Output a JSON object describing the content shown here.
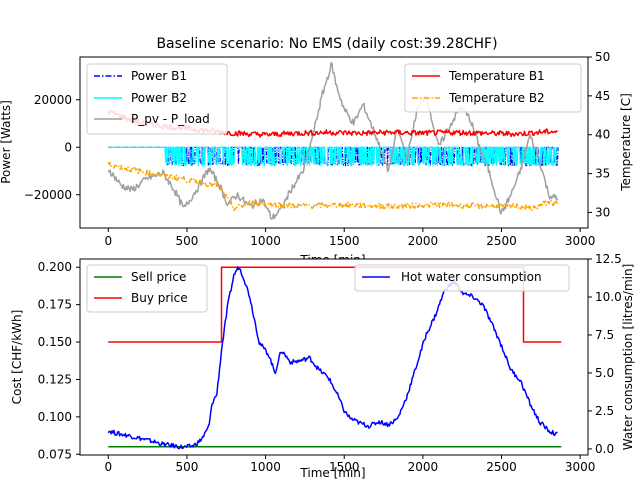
{
  "chart_data": [
    {
      "type": "line",
      "title": "Baseline scenario: No EMS (daily cost:39.28CHF)",
      "xlabel": "Time [min]",
      "ylabel": "Power [Watts]",
      "ylabel_right": "Temperature [C]",
      "xlim": [
        -180,
        3050
      ],
      "ylim": [
        -34000,
        38000
      ],
      "ylim_right": [
        28,
        50
      ],
      "xticks": [
        "0",
        "500",
        "1000",
        "1500",
        "2000",
        "2500",
        "3000"
      ],
      "yticks": [
        "−20000",
        "0",
        "20000"
      ],
      "yticks_right": [
        "30",
        "35",
        "40",
        "45",
        "50"
      ],
      "legend_left": [
        "Power B1",
        "Power B2",
        "P_pv - P_load"
      ],
      "legend_right": [
        "Temperature B1",
        "Temperature B2"
      ],
      "series": [
        {
          "name": "Power B1",
          "axis": "left",
          "color": "#0000ff",
          "style": "dashdot",
          "note_values": [
            0,
            -7000
          ]
        },
        {
          "name": "Power B2",
          "axis": "left",
          "color": "#00ffff",
          "style": "solid",
          "note_values": [
            0,
            -7000
          ]
        },
        {
          "name": "P_pv - P_load",
          "axis": "left",
          "color": "#a0a0a0",
          "style": "solid",
          "x": [
            0,
            80,
            150,
            250,
            350,
            420,
            480,
            560,
            640,
            700,
            760,
            820,
            900,
            980,
            1040,
            1100,
            1160,
            1240,
            1300,
            1360,
            1420,
            1450,
            1500,
            1560,
            1620,
            1700,
            1780,
            1840,
            1900,
            1960,
            2020,
            2100,
            2180,
            2240,
            2300,
            2360,
            2420,
            2500,
            2560,
            2620,
            2680,
            2740,
            2800,
            2860
          ],
          "y": [
            -9000,
            -16000,
            -18000,
            -13000,
            -11000,
            -18000,
            -26000,
            -18000,
            -9000,
            -15000,
            -24000,
            -20000,
            -25000,
            -22000,
            -30000,
            -26000,
            -18000,
            -10000,
            5000,
            22000,
            35000,
            26000,
            16000,
            10000,
            18000,
            5000,
            -10000,
            8000,
            -5000,
            15000,
            22000,
            0,
            10000,
            17000,
            12000,
            0,
            -10000,
            -28000,
            -20000,
            -10000,
            5000,
            -5000,
            -20000,
            -22000
          ]
        },
        {
          "name": "Temperature B1",
          "axis": "right",
          "color": "#ff0000",
          "style": "solid",
          "x": [
            0,
            200,
            400,
            600,
            800,
            1000,
            1200,
            1400,
            1600,
            1800,
            2000,
            2200,
            2400,
            2600,
            2800,
            2860
          ],
          "y": [
            43.0,
            41.5,
            41.0,
            40.6,
            40.2,
            40.0,
            40.2,
            40.3,
            40.2,
            40.3,
            40.2,
            40.3,
            40.2,
            40.1,
            40.4,
            40.4
          ]
        },
        {
          "name": "Temperature B2",
          "axis": "right",
          "color": "#ffa500",
          "style": "dashdot",
          "x": [
            0,
            200,
            400,
            600,
            700,
            800,
            900,
            1200,
            1500,
            1800,
            2100,
            2400,
            2600,
            2700,
            2800,
            2860
          ],
          "y": [
            36.2,
            35.3,
            34.6,
            33.8,
            33.5,
            30.5,
            31.2,
            30.8,
            31.0,
            30.8,
            31.0,
            30.8,
            30.8,
            30.5,
            31.4,
            31.0
          ]
        }
      ]
    },
    {
      "type": "line",
      "xlabel": "Time [min]",
      "ylabel": "Cost [CHF/kWh]",
      "ylabel_right": "Water consumption [litres/min]",
      "xlim": [
        -180,
        3050
      ],
      "ylim": [
        0.0745,
        0.2055
      ],
      "ylim_right": [
        -0.4,
        12.5
      ],
      "xticks": [
        "0",
        "500",
        "1000",
        "1500",
        "2000",
        "2500",
        "3000"
      ],
      "yticks": [
        "0.075",
        "0.100",
        "0.125",
        "0.150",
        "0.175",
        "0.200"
      ],
      "yticks_right": [
        "0.0",
        "2.5",
        "5.0",
        "7.5",
        "10.0",
        "12.5"
      ],
      "legend_left": [
        "Sell price",
        "Buy price"
      ],
      "legend_right": [
        "Hot water consumption"
      ],
      "series": [
        {
          "name": "Sell price",
          "axis": "left",
          "color": "#008000",
          "x": [
            0,
            2880
          ],
          "y": [
            0.08,
            0.08
          ]
        },
        {
          "name": "Buy price",
          "axis": "left",
          "color": "#ff0000",
          "x": [
            0,
            720,
            720,
            2640,
            2640,
            2880
          ],
          "y": [
            0.15,
            0.15,
            0.2,
            0.2,
            0.15,
            0.15
          ]
        },
        {
          "name": "Hot water consumption",
          "axis": "right",
          "color": "#0000ff",
          "x": [
            0,
            60,
            120,
            200,
            280,
            350,
            420,
            480,
            540,
            580,
            610,
            640,
            660,
            690,
            720,
            760,
            800,
            830,
            860,
            900,
            960,
            1020,
            1060,
            1100,
            1160,
            1220,
            1280,
            1340,
            1400,
            1460,
            1500,
            1540,
            1600,
            1660,
            1720,
            1780,
            1840,
            1900,
            1960,
            2020,
            2080,
            2140,
            2200,
            2260,
            2320,
            2380,
            2440,
            2500,
            2560,
            2620,
            2680,
            2740,
            2800,
            2860
          ],
          "y": [
            1.2,
            1.0,
            0.9,
            0.7,
            0.5,
            0.3,
            0.2,
            0.1,
            0.2,
            0.5,
            0.9,
            1.5,
            3.0,
            3.6,
            6.5,
            9.5,
            11.5,
            12.0,
            11.3,
            10.0,
            7.0,
            6.2,
            5.0,
            6.5,
            5.7,
            5.8,
            6.0,
            5.2,
            4.7,
            3.5,
            2.5,
            2.0,
            1.7,
            1.5,
            1.8,
            1.6,
            2.0,
            3.5,
            5.5,
            7.5,
            8.8,
            10.5,
            11.0,
            10.2,
            10.0,
            9.5,
            8.2,
            6.8,
            5.2,
            4.5,
            3.0,
            1.8,
            1.2,
            0.9
          ]
        }
      ]
    }
  ]
}
